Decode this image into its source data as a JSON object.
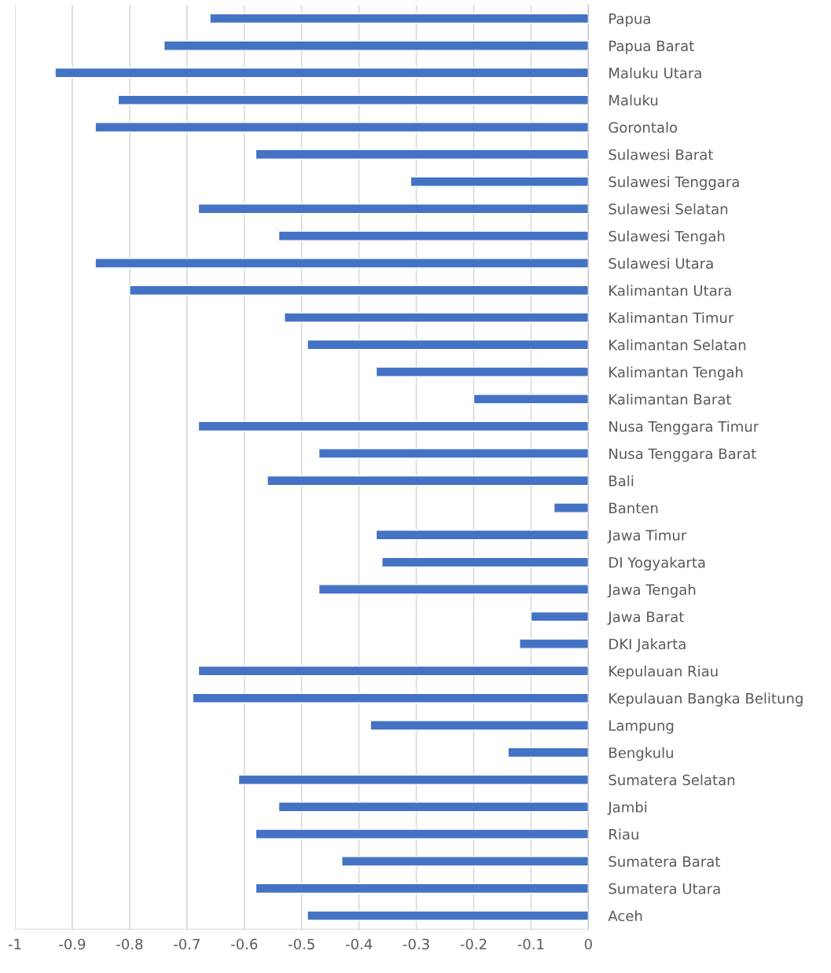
{
  "chart_data": {
    "type": "bar",
    "orientation": "horizontal",
    "categories": [
      "Papua",
      "Papua Barat",
      "Maluku Utara",
      "Maluku",
      "Gorontalo",
      "Sulawesi Barat",
      "Sulawesi Tenggara",
      "Sulawesi Selatan",
      "Sulawesi Tengah",
      "Sulawesi Utara",
      "Kalimantan Utara",
      "Kalimantan Timur",
      "Kalimantan Selatan",
      "Kalimantan Tengah",
      "Kalimantan Barat",
      "Nusa Tenggara Timur",
      "Nusa Tenggara Barat",
      "Bali",
      "Banten",
      "Jawa Timur",
      "DI Yogyakarta",
      "Jawa Tengah",
      "Jawa Barat",
      "DKI Jakarta",
      "Kepulauan Riau",
      "Kepulauan Bangka Belitung",
      "Lampung",
      "Bengkulu",
      "Sumatera Selatan",
      "Jambi",
      "Riau",
      "Sumatera Barat",
      "Sumatera Utara",
      "Aceh"
    ],
    "values": [
      -0.66,
      -0.74,
      -0.93,
      -0.82,
      -0.86,
      -0.58,
      -0.31,
      -0.68,
      -0.54,
      -0.86,
      -0.8,
      -0.53,
      -0.49,
      -0.37,
      -0.2,
      -0.68,
      -0.47,
      -0.56,
      -0.06,
      -0.37,
      -0.36,
      -0.47,
      -0.1,
      -0.12,
      -0.68,
      -0.69,
      -0.38,
      -0.14,
      -0.61,
      -0.54,
      -0.58,
      -0.43,
      -0.58,
      -0.49
    ],
    "color": "#4472c4",
    "xlim": [
      -1,
      0
    ],
    "xticks": [
      -1,
      -0.9,
      -0.8,
      -0.7,
      -0.6,
      -0.5,
      -0.4,
      -0.3,
      -0.2,
      -0.1,
      0
    ],
    "grid": "x",
    "legend": false
  }
}
